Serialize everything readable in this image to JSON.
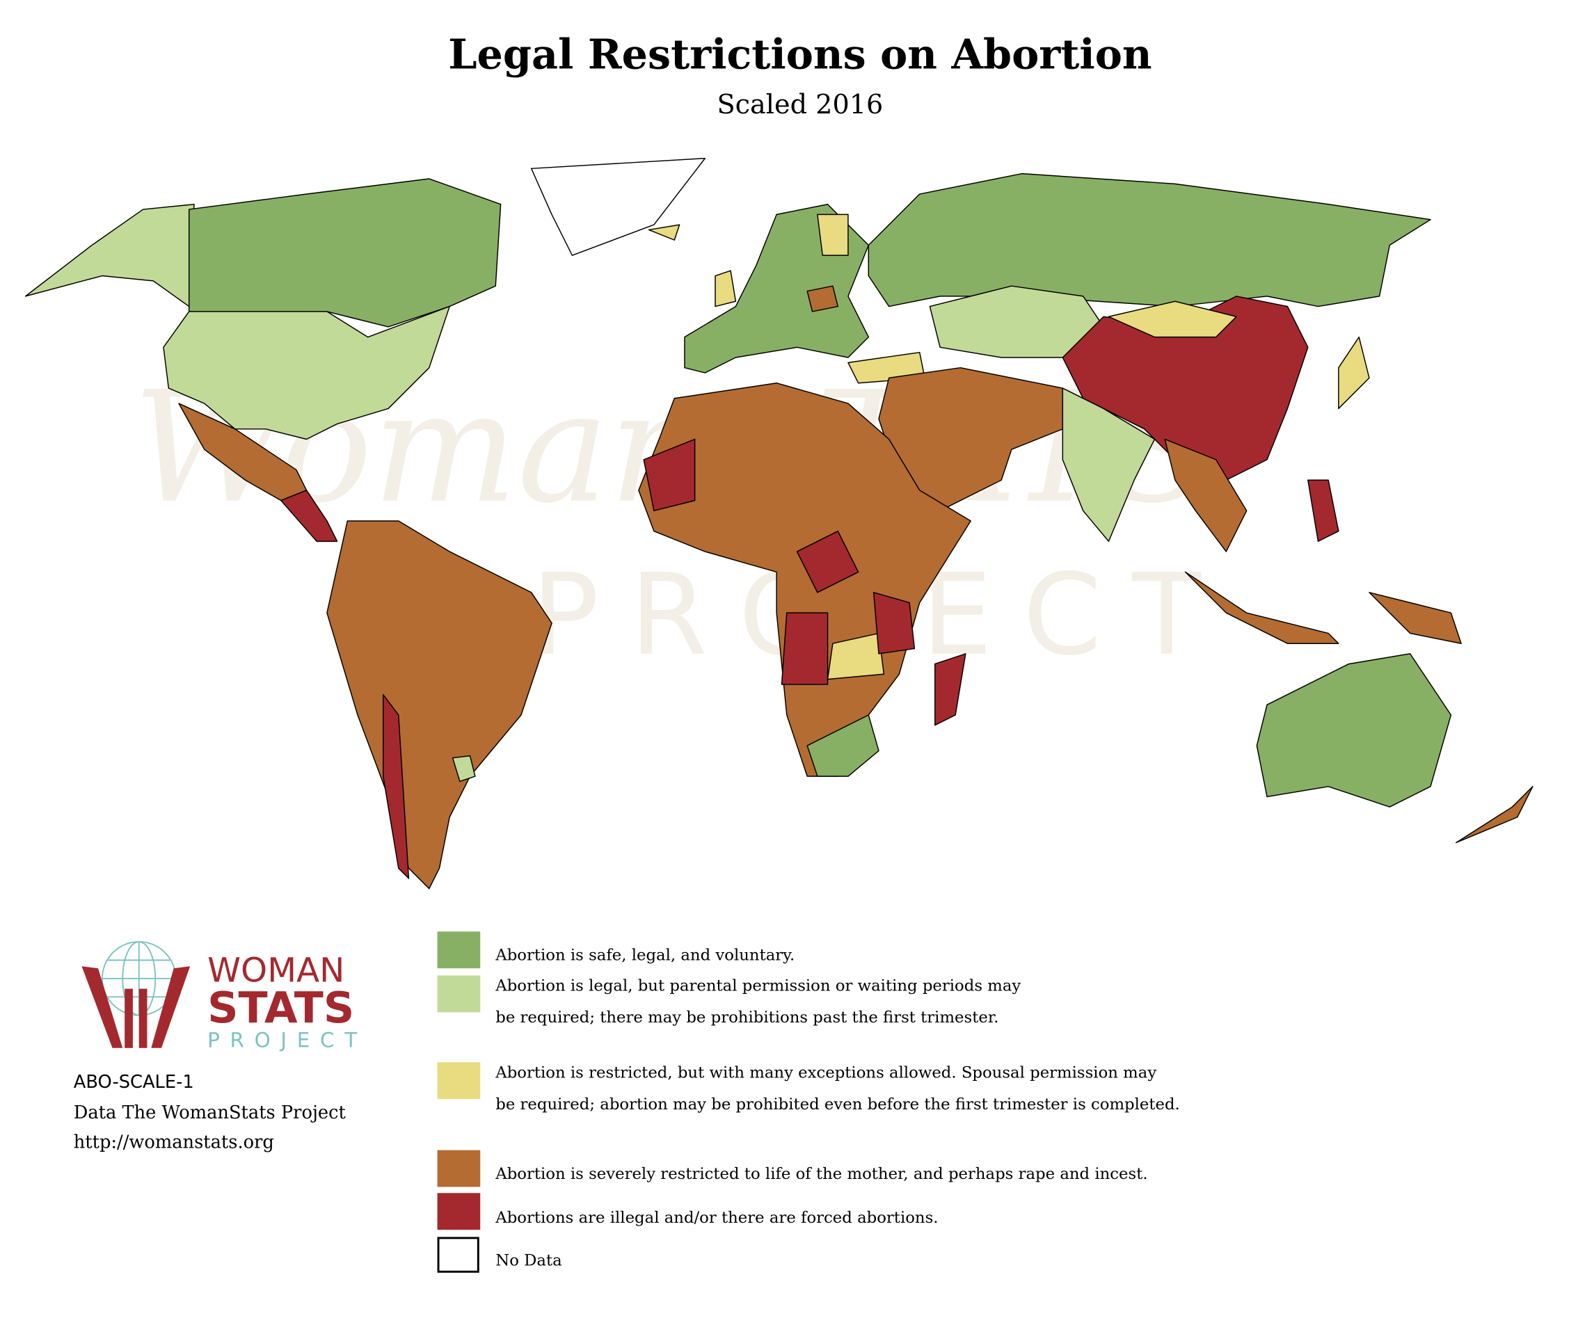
{
  "title": "Legal Restrictions on Abortion",
  "subtitle": "Scaled 2016",
  "watermark": {
    "line1": "WomanSTATS",
    "line2": "PROJECT"
  },
  "logo": {
    "word1": "WOMAN",
    "word2": "STATS",
    "word3": "PROJECT"
  },
  "meta": {
    "code": "ABO-SCALE-1",
    "source": "Data The WomanStats Project",
    "url": "http://womanstats.org"
  },
  "colors": {
    "cat1": "#88b064",
    "cat2": "#c2da98",
    "cat3": "#e8db80",
    "cat4": "#b46c32",
    "cat5": "#a4292e",
    "nodata": "#ffffff",
    "logo_red": "#a4292e",
    "logo_teal": "#7cc3c3"
  },
  "legend": [
    {
      "color": "#88b064",
      "line1": "Abortion is safe, legal, and voluntary.",
      "line2": ""
    },
    {
      "color": "#c2da98",
      "line1": "Abortion is legal, but parental permission or waiting periods may",
      "line2": "be required; there may be prohibitions past the first trimester."
    },
    {
      "color": "#e8db80",
      "line1": "Abortion is restricted, but with many exceptions allowed. Spousal permission may",
      "line2": "be required; abortion may be prohibited even before the first trimester is completed."
    },
    {
      "color": "#b46c32",
      "line1": "Abortion is severely restricted to life of the mother, and perhaps rape and incest.",
      "line2": ""
    },
    {
      "color": "#a4292e",
      "line1": "Abortions are illegal and/or there are forced abortions.",
      "line2": ""
    },
    {
      "color": "#ffffff",
      "line1": "No Data",
      "line2": ""
    }
  ]
}
